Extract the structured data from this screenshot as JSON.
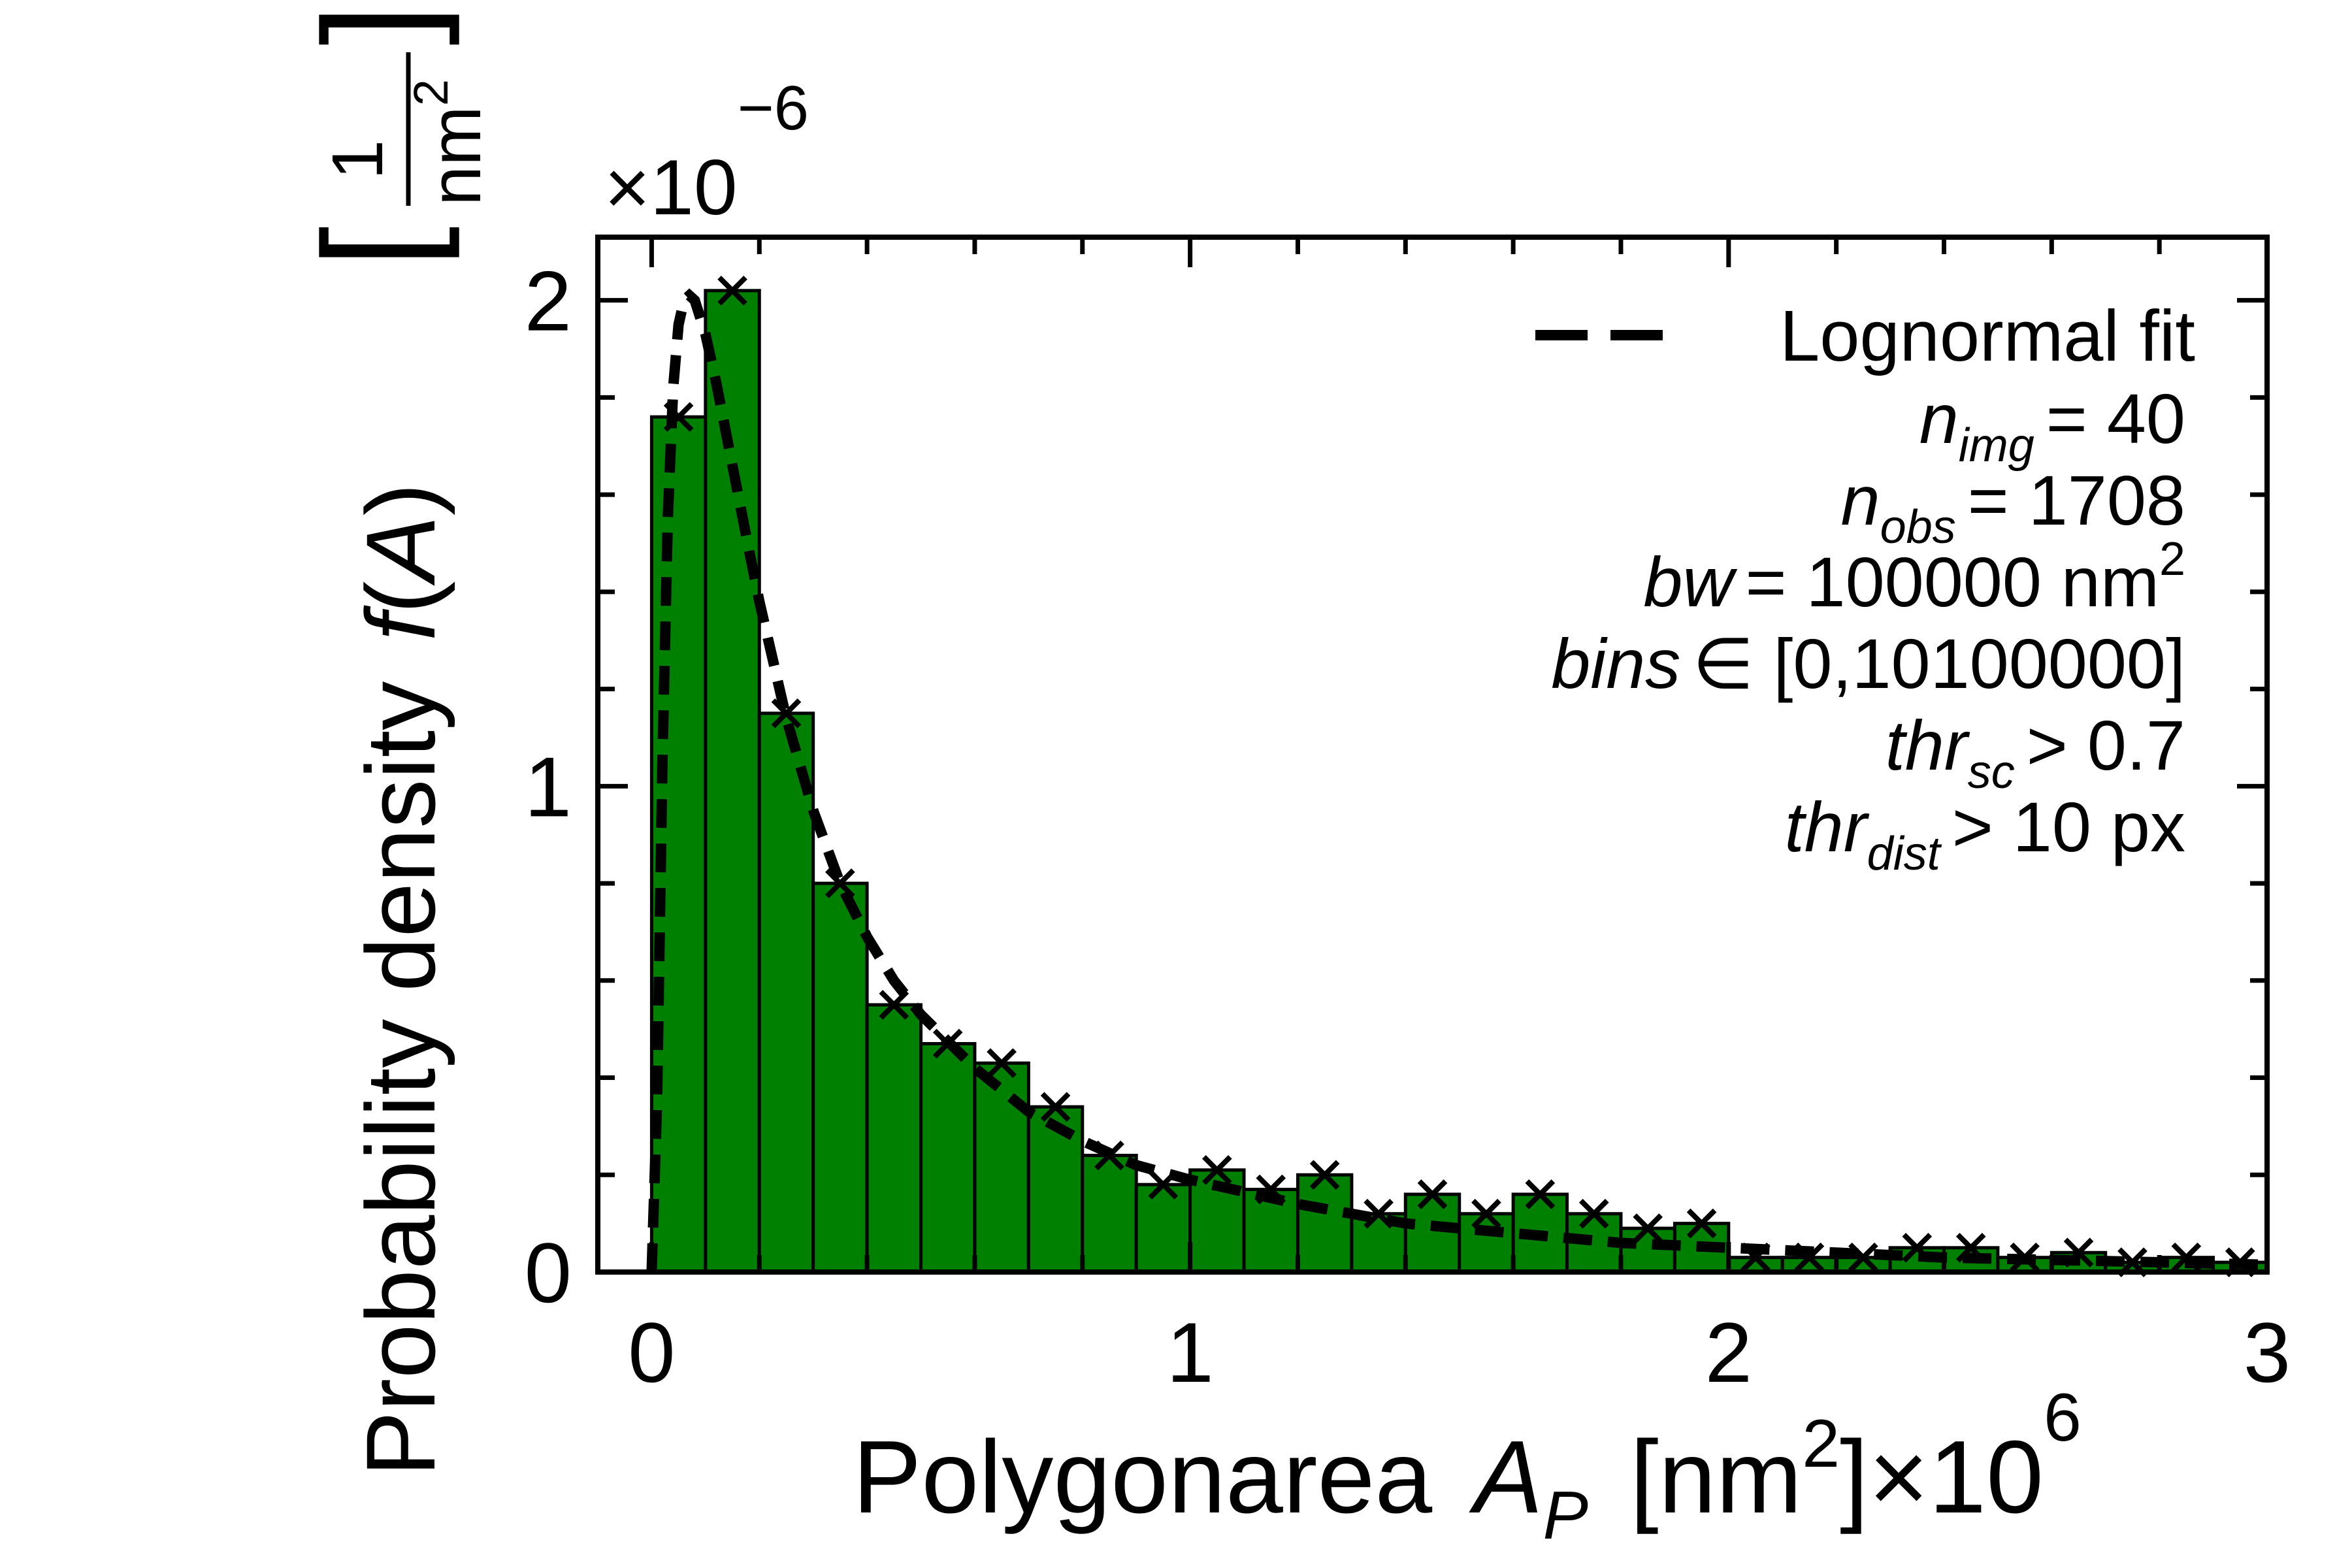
{
  "chart_data": {
    "type": "bar",
    "title": "",
    "xlabel": {
      "main": "Polygonarea",
      "var": "A",
      "sub": "P",
      "unit_open": "[nm",
      "unit_sup": "2",
      "unit_close": "]",
      "mult": "×10",
      "mult_exp": "6"
    },
    "ylabel": {
      "main": "Probability density",
      "func": "f",
      "arg_open": "(",
      "arg": "A",
      "arg_close": ")",
      "unit_num": "1",
      "unit_den": "nm",
      "unit_den_sup": "2"
    },
    "y_offset": {
      "base": "×10",
      "exp": "−6"
    },
    "xlim": [
      -0.1,
      3.0
    ],
    "ylim": [
      0,
      2.13
    ],
    "x_scale_note": "x in units of 1e6 nm², y in units of 1e-6 per nm²",
    "xticks": [
      0,
      1,
      2,
      3
    ],
    "xtick_labels": [
      "0",
      "1",
      "2",
      "3"
    ],
    "x_minor_step": 0.2,
    "yticks": [
      0,
      1,
      2
    ],
    "ytick_labels": [
      "0",
      "1",
      "2"
    ],
    "y_minor_step": 0.2,
    "grid": false,
    "bar_color": "#008000",
    "bin_width": 0.1,
    "bins": [
      {
        "x0": 0.0,
        "value": 1.76
      },
      {
        "x0": 0.1,
        "value": 2.02
      },
      {
        "x0": 0.2,
        "value": 1.15
      },
      {
        "x0": 0.3,
        "value": 0.8
      },
      {
        "x0": 0.4,
        "value": 0.55
      },
      {
        "x0": 0.5,
        "value": 0.47
      },
      {
        "x0": 0.6,
        "value": 0.43
      },
      {
        "x0": 0.7,
        "value": 0.34
      },
      {
        "x0": 0.8,
        "value": 0.24
      },
      {
        "x0": 0.9,
        "value": 0.18
      },
      {
        "x0": 1.0,
        "value": 0.21
      },
      {
        "x0": 1.1,
        "value": 0.17
      },
      {
        "x0": 1.2,
        "value": 0.2
      },
      {
        "x0": 1.3,
        "value": 0.12
      },
      {
        "x0": 1.4,
        "value": 0.16
      },
      {
        "x0": 1.5,
        "value": 0.12
      },
      {
        "x0": 1.6,
        "value": 0.16
      },
      {
        "x0": 1.7,
        "value": 0.12
      },
      {
        "x0": 1.8,
        "value": 0.09
      },
      {
        "x0": 1.9,
        "value": 0.1
      },
      {
        "x0": 2.0,
        "value": 0.03
      },
      {
        "x0": 2.1,
        "value": 0.03
      },
      {
        "x0": 2.2,
        "value": 0.03
      },
      {
        "x0": 2.3,
        "value": 0.05
      },
      {
        "x0": 2.4,
        "value": 0.05
      },
      {
        "x0": 2.5,
        "value": 0.03
      },
      {
        "x0": 2.6,
        "value": 0.04
      },
      {
        "x0": 2.7,
        "value": 0.02
      },
      {
        "x0": 2.8,
        "value": 0.03
      },
      {
        "x0": 2.9,
        "value": 0.02
      }
    ],
    "fit_curve": {
      "name": "Lognormal fit",
      "style": "dashed",
      "points": [
        [
          0.0,
          0.0
        ],
        [
          0.01,
          0.35
        ],
        [
          0.02,
          1.05
        ],
        [
          0.03,
          1.55
        ],
        [
          0.04,
          1.82
        ],
        [
          0.05,
          1.95
        ],
        [
          0.06,
          2.0
        ],
        [
          0.07,
          2.01
        ],
        [
          0.08,
          2.0
        ],
        [
          0.1,
          1.93
        ],
        [
          0.12,
          1.83
        ],
        [
          0.15,
          1.66
        ],
        [
          0.18,
          1.49
        ],
        [
          0.2,
          1.38
        ],
        [
          0.25,
          1.14
        ],
        [
          0.3,
          0.95
        ],
        [
          0.35,
          0.8
        ],
        [
          0.4,
          0.69
        ],
        [
          0.45,
          0.6
        ],
        [
          0.5,
          0.53
        ],
        [
          0.6,
          0.42
        ],
        [
          0.7,
          0.33
        ],
        [
          0.8,
          0.27
        ],
        [
          0.9,
          0.22
        ],
        [
          1.0,
          0.19
        ],
        [
          1.2,
          0.14
        ],
        [
          1.4,
          0.1
        ],
        [
          1.6,
          0.08
        ],
        [
          1.8,
          0.06
        ],
        [
          2.0,
          0.05
        ],
        [
          2.2,
          0.04
        ],
        [
          2.4,
          0.03
        ],
        [
          2.6,
          0.025
        ],
        [
          2.8,
          0.02
        ],
        [
          3.0,
          0.015
        ]
      ]
    },
    "legend": {
      "placement": "top-right",
      "entry": "Lognormal fit",
      "info_lines": [
        {
          "var": "n",
          "sub": "img",
          "rel": "= 40",
          "sup": ""
        },
        {
          "var": "n",
          "sub": "obs",
          "rel": "= 1708",
          "sup": ""
        },
        {
          "var": "bw",
          "sub": "",
          "rel": "= 100000 nm",
          "sup": "2"
        },
        {
          "var": "bins",
          "sub": "",
          "rel": "∈ [0,10100000]",
          "sup": ""
        },
        {
          "var": "thr",
          "sub": "sc",
          "rel": ">  0.7",
          "sup": ""
        },
        {
          "var": "thr",
          "sub": "dist",
          "rel": "> 10 px",
          "sup": ""
        }
      ]
    }
  }
}
